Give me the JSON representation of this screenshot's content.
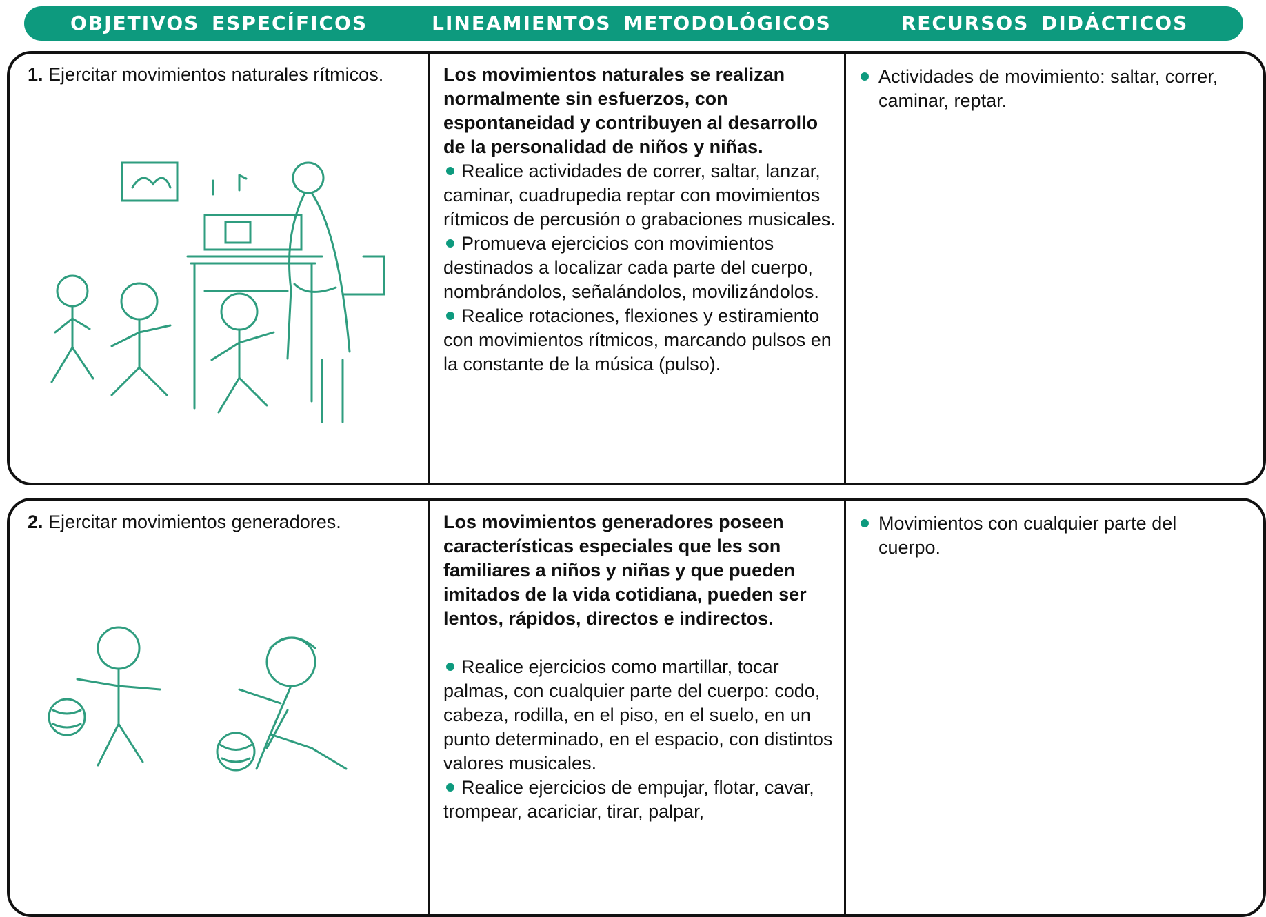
{
  "header": {
    "columns": [
      "OBJETIVOS ESPECÍFICOS",
      "LINEAMIENTOS METODOLÓGICOS",
      "RECURSOS DIDÁCTICOS"
    ]
  },
  "rows": [
    {
      "objective": {
        "number": "1.",
        "text": "Ejercitar movimientos naturales rítmicos."
      },
      "methodology": {
        "intro": "Los movimientos naturales se realizan normalmente sin esfuerzos, con espontaneidad y contribuyen al desarrollo de la personalidad de niños y niñas.",
        "bullets": [
          "Realice actividades de correr, saltar, lanzar, caminar, cuadrupedia reptar con movimientos rítmicos de percusión o grabaciones musicales.",
          "Promueva ejercicios con movimientos destinados a localizar cada parte del cuerpo, nombrándolos, señalándolos, movilizándolos.",
          "Realice rotaciones, flexiones y estiramiento con movimientos rítmicos, marcando pulsos en la constante de la música (pulso)."
        ]
      },
      "resources": [
        "Actividades de movimiento: saltar, correr, caminar, reptar."
      ]
    },
    {
      "objective": {
        "number": "2.",
        "text": "Ejercitar movimientos generadores."
      },
      "methodology": {
        "intro": "Los movimientos generadores poseen características especiales que les son familiares a niños y niñas y que pueden imitados de la vida cotidiana, pueden ser lentos, rápidos, directos e indirectos.",
        "bullets": [
          "Realice ejercicios como  martillar, tocar palmas,  con cualquier parte del cuerpo: codo, cabeza, rodilla, en el piso, en el suelo, en un punto determinado, en el espacio, con distintos valores musicales.",
          "Realice ejercicios de empujar, flotar, cavar, trompear, acariciar, tirar, palpar,"
        ]
      },
      "resources": [
        "Movimientos con cualquier parte del cuerpo."
      ]
    }
  ]
}
